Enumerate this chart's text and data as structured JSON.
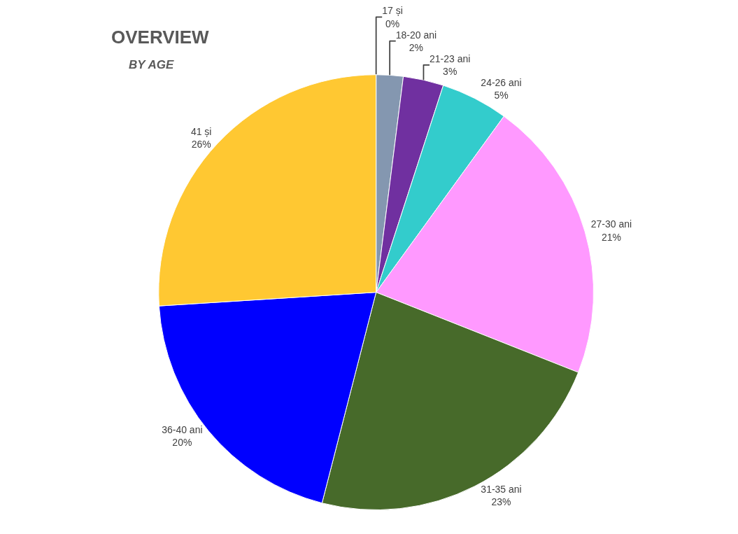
{
  "chart_data": {
    "type": "pie",
    "title": "OVERVIEW",
    "subtitle": "BY AGE",
    "categories": [
      "17 și",
      "18-20 ani",
      "21-23 ani",
      "24-26 ani",
      "27-30 ani",
      "31-35 ani",
      "36-40 ani",
      "41 și"
    ],
    "values": [
      0,
      2,
      3,
      5,
      21,
      23,
      20,
      26
    ],
    "value_labels": [
      "0%",
      "2%",
      "3%",
      "5%",
      "21%",
      "23%",
      "20%",
      "26%"
    ],
    "colors": [
      "#c00000",
      "#8497b0",
      "#7030a0",
      "#33cccc",
      "#ff99ff",
      "#476a2a",
      "#0000ff",
      "#ffc832"
    ],
    "legend": false
  }
}
